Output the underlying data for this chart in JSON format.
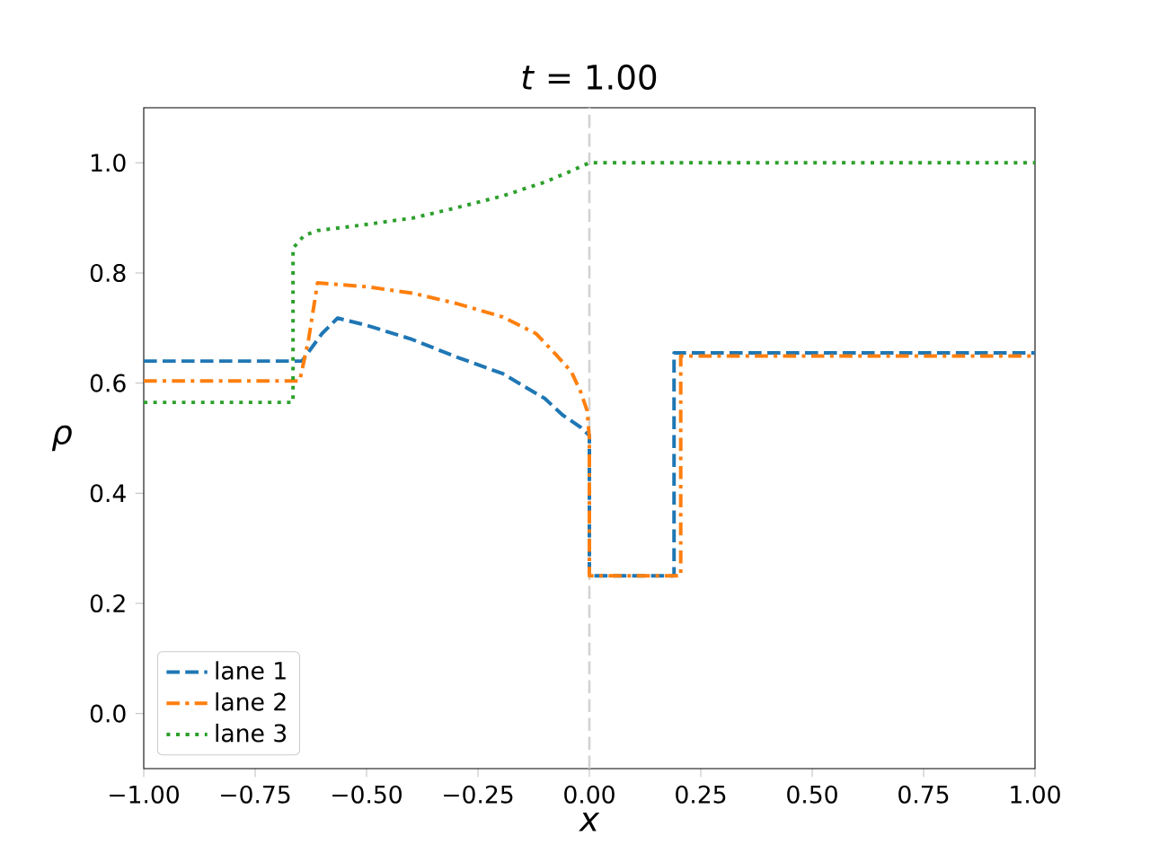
{
  "chart_data": {
    "type": "line",
    "title": "*t* = 1.00",
    "xlabel": "x",
    "ylabel": "ρ",
    "xlim": [
      -1,
      1
    ],
    "ylim": [
      -0.1,
      1.1
    ],
    "xticks": [
      {
        "value": -1,
        "label": "−1.00"
      },
      {
        "value": -0.75,
        "label": "−0.75"
      },
      {
        "value": -0.5,
        "label": "−0.50"
      },
      {
        "value": -0.25,
        "label": "−0.25"
      },
      {
        "value": 0,
        "label": "0.00"
      },
      {
        "value": 0.25,
        "label": "0.25"
      },
      {
        "value": 0.5,
        "label": "0.50"
      },
      {
        "value": 0.75,
        "label": "0.75"
      },
      {
        "value": 1,
        "label": "1.00"
      }
    ],
    "yticks": [
      {
        "value": 0,
        "label": "0.0"
      },
      {
        "value": 0.2,
        "label": "0.2"
      },
      {
        "value": 0.4,
        "label": "0.4"
      },
      {
        "value": 0.6,
        "label": "0.6"
      },
      {
        "value": 0.8,
        "label": "0.8"
      },
      {
        "value": 1,
        "label": "1.0"
      }
    ],
    "grid": false,
    "legend": "bottom left",
    "marker": "none",
    "ref_lines": [
      {
        "axis": "x",
        "value": 0,
        "color": "#d3d3d3",
        "line_style": "dashed"
      }
    ],
    "series": [
      {
        "name": "lane 1",
        "color": "#1f77b4",
        "line_style": "dashed",
        "x": [
          -1,
          -0.66,
          -0.645,
          -0.6,
          -0.565,
          -0.5,
          -0.4,
          -0.3,
          -0.194,
          -0.1,
          -0.06,
          -0.02,
          0,
          0,
          0.19,
          0.19,
          1
        ],
        "values": [
          0.64,
          0.64,
          0.64,
          0.69,
          0.718,
          0.705,
          0.68,
          0.648,
          0.617,
          0.572,
          0.542,
          0.52,
          0.505,
          0.25,
          0.25,
          0.655,
          0.655
        ]
      },
      {
        "name": "lane 2",
        "color": "#ff7f0e",
        "line_style": "dashdot",
        "x": [
          -1,
          -0.65,
          -0.63,
          -0.61,
          -0.5,
          -0.395,
          -0.3,
          -0.194,
          -0.12,
          -0.073,
          -0.04,
          -0.02,
          -0.005,
          0,
          0,
          0.205,
          0.205,
          1
        ],
        "values": [
          0.604,
          0.604,
          0.68,
          0.782,
          0.775,
          0.763,
          0.745,
          0.72,
          0.69,
          0.65,
          0.62,
          0.585,
          0.55,
          0.5,
          0.25,
          0.25,
          0.649,
          0.649
        ]
      },
      {
        "name": "lane 3",
        "color": "#2ca02c",
        "line_style": "dotted",
        "x": [
          -1,
          -0.665,
          -0.665,
          -0.64,
          -0.61,
          -0.5,
          -0.395,
          -0.3,
          -0.194,
          -0.1,
          -0.05,
          0,
          1
        ],
        "values": [
          0.565,
          0.565,
          0.845,
          0.868,
          0.877,
          0.888,
          0.9,
          0.918,
          0.94,
          0.965,
          0.982,
          1.0,
          1.0
        ]
      }
    ]
  }
}
